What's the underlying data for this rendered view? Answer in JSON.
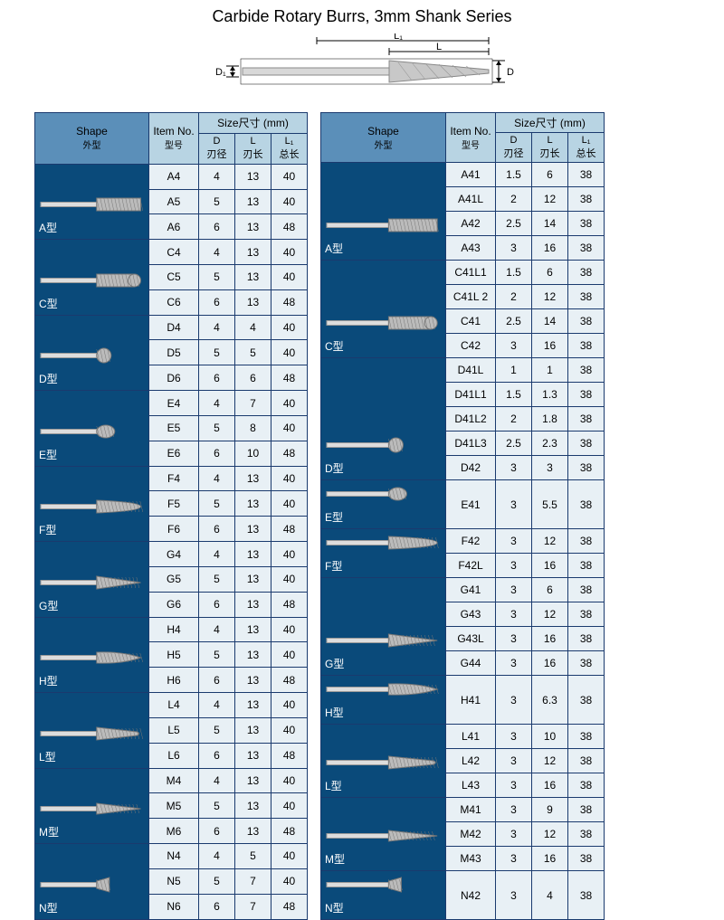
{
  "title": "Carbide Rotary Burrs, 3mm Shank Series",
  "diagram": {
    "L1": "L₁",
    "L": "L",
    "D1": "D₁",
    "D": "D"
  },
  "headers": {
    "shape": "Shape",
    "shape_sub": "外型",
    "item": "Item No.",
    "item_sub": "型号",
    "size": "Size尺寸  (mm)",
    "d": "D",
    "d_sub": "刃径",
    "l": "L",
    "l_sub": "刃长",
    "l1": "L₁",
    "l1_sub": "总长"
  },
  "colors": {
    "header_bg": "#b8d4e3",
    "shape_header_bg": "#5b8fb9",
    "data_bg": "#e8f0f5",
    "shape_cell_bg": "#0a4a7a",
    "border": "#1a3a6e"
  },
  "left_table": {
    "col_widths": {
      "shape": 126,
      "item": 55,
      "d": 40,
      "l": 40,
      "l1": 40
    },
    "groups": [
      {
        "label": "A型",
        "shape": "cylinder",
        "rows": [
          {
            "item": "A4",
            "d": "4",
            "l": "13",
            "l1": "40"
          },
          {
            "item": "A5",
            "d": "5",
            "l": "13",
            "l1": "40"
          },
          {
            "item": "A6",
            "d": "6",
            "l": "13",
            "l1": "48"
          }
        ]
      },
      {
        "label": "C型",
        "shape": "cylinder-round",
        "rows": [
          {
            "item": "C4",
            "d": "4",
            "l": "13",
            "l1": "40"
          },
          {
            "item": "C5",
            "d": "5",
            "l": "13",
            "l1": "40"
          },
          {
            "item": "C6",
            "d": "6",
            "l": "13",
            "l1": "48"
          }
        ]
      },
      {
        "label": "D型",
        "shape": "ball",
        "rows": [
          {
            "item": "D4",
            "d": "4",
            "l": "4",
            "l1": "40"
          },
          {
            "item": "D5",
            "d": "5",
            "l": "5",
            "l1": "40"
          },
          {
            "item": "D6",
            "d": "6",
            "l": "6",
            "l1": "48"
          }
        ]
      },
      {
        "label": "E型",
        "shape": "oval",
        "rows": [
          {
            "item": "E4",
            "d": "4",
            "l": "7",
            "l1": "40"
          },
          {
            "item": "E5",
            "d": "5",
            "l": "8",
            "l1": "40"
          },
          {
            "item": "E6",
            "d": "6",
            "l": "10",
            "l1": "48"
          }
        ]
      },
      {
        "label": "F型",
        "shape": "tree-round",
        "rows": [
          {
            "item": "F4",
            "d": "4",
            "l": "13",
            "l1": "40"
          },
          {
            "item": "F5",
            "d": "5",
            "l": "13",
            "l1": "40"
          },
          {
            "item": "F6",
            "d": "6",
            "l": "13",
            "l1": "48"
          }
        ]
      },
      {
        "label": "G型",
        "shape": "tree-point",
        "rows": [
          {
            "item": "G4",
            "d": "4",
            "l": "13",
            "l1": "40"
          },
          {
            "item": "G5",
            "d": "5",
            "l": "13",
            "l1": "40"
          },
          {
            "item": "G6",
            "d": "6",
            "l": "13",
            "l1": "48"
          }
        ]
      },
      {
        "label": "H型",
        "shape": "flame",
        "rows": [
          {
            "item": "H4",
            "d": "4",
            "l": "13",
            "l1": "40"
          },
          {
            "item": "H5",
            "d": "5",
            "l": "13",
            "l1": "40"
          },
          {
            "item": "H6",
            "d": "6",
            "l": "13",
            "l1": "48"
          }
        ]
      },
      {
        "label": "L型",
        "shape": "cone-round",
        "rows": [
          {
            "item": "L4",
            "d": "4",
            "l": "13",
            "l1": "40"
          },
          {
            "item": "L5",
            "d": "5",
            "l": "13",
            "l1": "40"
          },
          {
            "item": "L6",
            "d": "6",
            "l": "13",
            "l1": "48"
          }
        ]
      },
      {
        "label": "M型",
        "shape": "cone-point",
        "rows": [
          {
            "item": "M4",
            "d": "4",
            "l": "13",
            "l1": "40"
          },
          {
            "item": "M5",
            "d": "5",
            "l": "13",
            "l1": "40"
          },
          {
            "item": "M6",
            "d": "6",
            "l": "13",
            "l1": "48"
          }
        ]
      },
      {
        "label": "N型",
        "shape": "inverted-cone",
        "rows": [
          {
            "item": "N4",
            "d": "4",
            "l": "5",
            "l1": "40"
          },
          {
            "item": "N5",
            "d": "5",
            "l": "7",
            "l1": "40"
          },
          {
            "item": "N6",
            "d": "6",
            "l": "7",
            "l1": "48"
          }
        ]
      }
    ]
  },
  "right_table": {
    "col_widths": {
      "shape": 138,
      "item": 55,
      "d": 40,
      "l": 40,
      "l1": 40
    },
    "groups": [
      {
        "label": "A型",
        "shape": "cylinder",
        "rows": [
          {
            "item": "A41",
            "d": "1.5",
            "l": "6",
            "l1": "38"
          },
          {
            "item": "A41L",
            "d": "2",
            "l": "12",
            "l1": "38"
          },
          {
            "item": "A42",
            "d": "2.5",
            "l": "14",
            "l1": "38"
          },
          {
            "item": "A43",
            "d": "3",
            "l": "16",
            "l1": "38"
          }
        ]
      },
      {
        "label": "C型",
        "shape": "cylinder-round",
        "rows": [
          {
            "item": "C41L1",
            "d": "1.5",
            "l": "6",
            "l1": "38"
          },
          {
            "item": "C41L 2",
            "d": "2",
            "l": "12",
            "l1": "38"
          },
          {
            "item": "C41",
            "d": "2.5",
            "l": "14",
            "l1": "38"
          },
          {
            "item": "C42",
            "d": "3",
            "l": "16",
            "l1": "38"
          }
        ]
      },
      {
        "label": "D型",
        "shape": "ball",
        "rows": [
          {
            "item": "D41L",
            "d": "1",
            "l": "1",
            "l1": "38"
          },
          {
            "item": "D41L1",
            "d": "1.5",
            "l": "1.3",
            "l1": "38"
          },
          {
            "item": "D41L2",
            "d": "2",
            "l": "1.8",
            "l1": "38"
          },
          {
            "item": "D41L3",
            "d": "2.5",
            "l": "2.3",
            "l1": "38"
          },
          {
            "item": "D42",
            "d": "3",
            "l": "3",
            "l1": "38"
          }
        ]
      },
      {
        "label": "E型",
        "shape": "oval",
        "rows": [
          {
            "item": "E41",
            "d": "3",
            "l": "5.5",
            "l1": "38"
          }
        ]
      },
      {
        "label": "F型",
        "shape": "tree-round",
        "rows": [
          {
            "item": "F42",
            "d": "3",
            "l": "12",
            "l1": "38"
          },
          {
            "item": "F42L",
            "d": "3",
            "l": "16",
            "l1": "38"
          }
        ]
      },
      {
        "label": "G型",
        "shape": "tree-point",
        "rows": [
          {
            "item": "G41",
            "d": "3",
            "l": "6",
            "l1": "38"
          },
          {
            "item": "G43",
            "d": "3",
            "l": "12",
            "l1": "38"
          },
          {
            "item": "G43L",
            "d": "3",
            "l": "16",
            "l1": "38"
          },
          {
            "item": "G44",
            "d": "3",
            "l": "16",
            "l1": "38"
          }
        ]
      },
      {
        "label": "H型",
        "shape": "flame",
        "rows": [
          {
            "item": "H41",
            "d": "3",
            "l": "6.3",
            "l1": "38"
          }
        ]
      },
      {
        "label": "L型",
        "shape": "cone-round",
        "rows": [
          {
            "item": "L41",
            "d": "3",
            "l": "10",
            "l1": "38"
          },
          {
            "item": "L42",
            "d": "3",
            "l": "12",
            "l1": "38"
          },
          {
            "item": "L43",
            "d": "3",
            "l": "16",
            "l1": "38"
          }
        ]
      },
      {
        "label": "M型",
        "shape": "cone-point",
        "rows": [
          {
            "item": "M41",
            "d": "3",
            "l": "9",
            "l1": "38"
          },
          {
            "item": "M42",
            "d": "3",
            "l": "12",
            "l1": "38"
          },
          {
            "item": "M43",
            "d": "3",
            "l": "16",
            "l1": "38"
          }
        ]
      },
      {
        "label": "N型",
        "shape": "inverted-cone",
        "rows": [
          {
            "item": "N42",
            "d": "3",
            "l": "4",
            "l1": "38"
          }
        ]
      }
    ]
  }
}
